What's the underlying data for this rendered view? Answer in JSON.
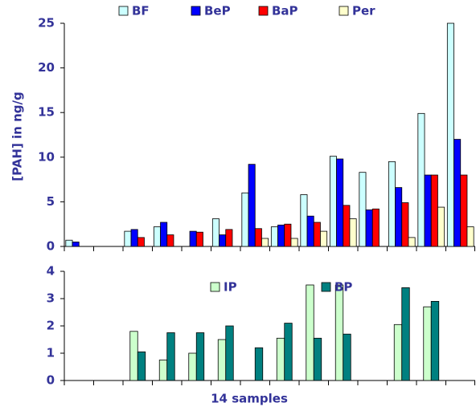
{
  "chart_data": [
    {
      "type": "bar",
      "y_label": "[PAH] in ng/g",
      "categories": [
        null,
        null,
        null,
        null,
        null,
        null,
        null,
        null,
        null,
        null,
        null,
        null,
        null,
        null
      ],
      "series": [
        {
          "name": "BF",
          "color": "#ccffff",
          "values": [
            0.7,
            null,
            1.7,
            2.2,
            null,
            3.1,
            6.0,
            2.2,
            5.8,
            10.1,
            8.3,
            9.5,
            14.9,
            25
          ]
        },
        {
          "name": "BeP",
          "color": "#0000ff",
          "values": [
            0.5,
            null,
            1.9,
            2.7,
            1.7,
            1.3,
            9.2,
            2.4,
            3.4,
            9.8,
            4.1,
            6.6,
            8.0,
            12.0
          ]
        },
        {
          "name": "BaP",
          "color": "#ff0000",
          "values": [
            null,
            null,
            1.0,
            1.3,
            1.6,
            1.9,
            2.0,
            2.5,
            2.7,
            4.6,
            4.2,
            4.9,
            8.0,
            8.0
          ]
        },
        {
          "name": "Per",
          "color": "#ffffcc",
          "values": [
            null,
            null,
            null,
            null,
            null,
            null,
            0.9,
            0.9,
            1.7,
            3.1,
            null,
            1.0,
            4.4,
            2.2
          ]
        }
      ],
      "ylim": [
        0,
        25
      ],
      "yticks": [
        0,
        5,
        10,
        15,
        20,
        25
      ],
      "grid": false,
      "legend": "top"
    },
    {
      "type": "bar",
      "x_label": "14 samples",
      "categories": [
        null,
        null,
        null,
        null,
        null,
        null,
        null,
        null,
        null,
        null,
        null,
        null,
        null,
        null
      ],
      "series": [
        {
          "name": "IP",
          "color": "#ccffcc",
          "values": [
            null,
            null,
            1.8,
            0.75,
            1.0,
            1.5,
            null,
            1.55,
            3.5,
            3.5,
            null,
            2.05,
            2.7,
            null
          ]
        },
        {
          "name": "BP",
          "color": "#008080",
          "values": [
            null,
            null,
            1.05,
            1.75,
            1.75,
            2.0,
            1.2,
            2.1,
            1.55,
            1.7,
            null,
            3.4,
            2.9,
            null
          ]
        }
      ],
      "ylim": [
        0,
        4
      ],
      "yticks": [
        0,
        1,
        2,
        3,
        4
      ],
      "grid": false,
      "legend": "top"
    }
  ]
}
